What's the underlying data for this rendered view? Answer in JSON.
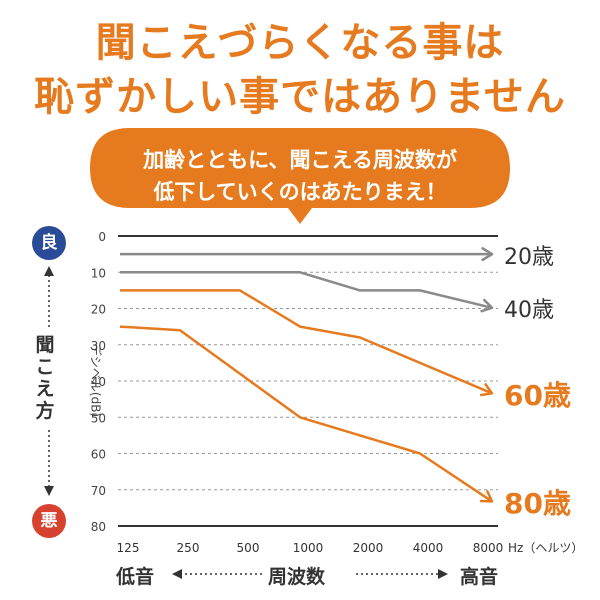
{
  "headline": {
    "line1": "聞こえづらくなる事は",
    "line2": "恥ずかしい事ではありません"
  },
  "bubble": {
    "line1": "加齢とともに、聞こえる周波数が",
    "line2": "低下していくのはあたりまえ！"
  },
  "side": {
    "good_badge": "良",
    "bad_badge": "悪",
    "label_chars": [
      "聞",
      "こ",
      "え",
      "方"
    ],
    "db_label": "デシベル(dB)"
  },
  "axis_words": {
    "low": "低音",
    "freq": "周波数",
    "high": "高音",
    "hz_unit": "Hz（ヘルツ）"
  },
  "colors": {
    "orange": "#e57a1f",
    "gray": "#8a8a8a",
    "dark": "#333333",
    "good_badge": "#2a4c98",
    "bad_badge": "#d6422f"
  },
  "chart_data": {
    "type": "line",
    "x": [
      "125",
      "250",
      "500",
      "1000",
      "2000",
      "4000",
      "8000"
    ],
    "ylim": [
      0,
      80
    ],
    "y_inverted": true,
    "yticks": [
      0,
      10,
      20,
      30,
      40,
      50,
      60,
      70,
      80
    ],
    "grid": true,
    "series": [
      {
        "name": "20歳",
        "color": "#8a8a8a",
        "values": [
          5,
          5,
          5,
          5,
          5,
          5,
          5
        ]
      },
      {
        "name": "40歳",
        "color": "#8a8a8a",
        "values": [
          10,
          10,
          10,
          10,
          15,
          15,
          19
        ]
      },
      {
        "name": "60歳",
        "color": "#e57a1f",
        "values": [
          15,
          15,
          15,
          25,
          28,
          35,
          42
        ]
      },
      {
        "name": "80歳",
        "color": "#e57a1f",
        "values": [
          25,
          26,
          38,
          50,
          55,
          60,
          71
        ]
      }
    ]
  }
}
